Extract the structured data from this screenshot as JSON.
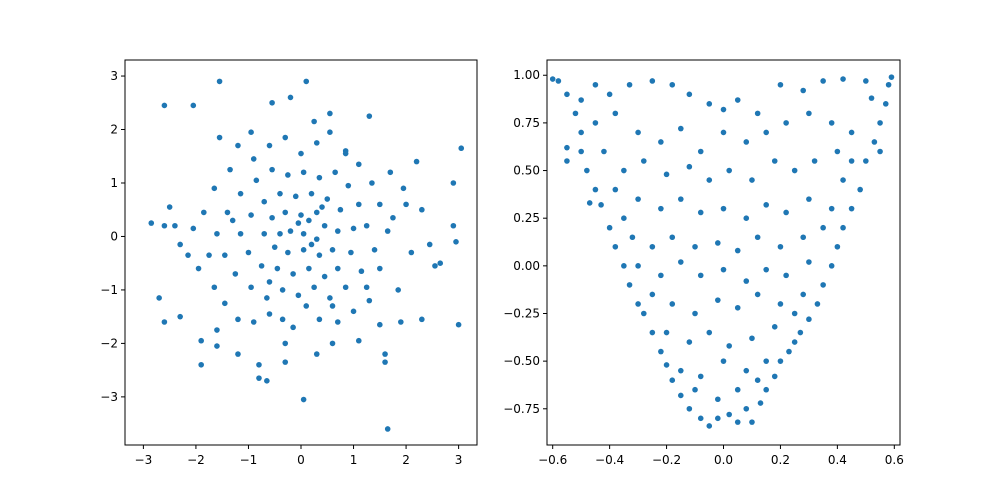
{
  "chart_data": [
    {
      "type": "scatter",
      "marker_color": "#1f77b4",
      "xlim": [
        -3.35,
        3.35
      ],
      "ylim": [
        -3.9,
        3.3
      ],
      "xticks": [
        -3,
        -2,
        -1,
        0,
        1,
        2,
        3
      ],
      "xtick_labels": [
        "−3",
        "−2",
        "−1",
        "0",
        "1",
        "2",
        "3"
      ],
      "yticks": [
        -3,
        -2,
        -1,
        0,
        1,
        2,
        3
      ],
      "ytick_labels": [
        "−3",
        "−2",
        "−1",
        "0",
        "1",
        "2",
        "3"
      ],
      "points": [
        [
          0.1,
          2.9
        ],
        [
          -1.55,
          2.9
        ],
        [
          -2.6,
          2.45
        ],
        [
          -2.05,
          2.45
        ],
        [
          -0.55,
          2.5
        ],
        [
          -0.2,
          2.6
        ],
        [
          1.3,
          2.25
        ],
        [
          0.55,
          2.3
        ],
        [
          -2.85,
          0.25
        ],
        [
          -2.6,
          0.2
        ],
        [
          -2.4,
          0.2
        ],
        [
          -2.7,
          -1.15
        ],
        [
          -2.6,
          -1.6
        ],
        [
          -2.3,
          -1.5
        ],
        [
          -1.9,
          -1.95
        ],
        [
          -1.6,
          -1.75
        ],
        [
          -1.9,
          -2.4
        ],
        [
          -1.6,
          -2.05
        ],
        [
          -1.2,
          -2.2
        ],
        [
          -0.8,
          -2.4
        ],
        [
          -0.8,
          -2.65
        ],
        [
          -0.65,
          -2.7
        ],
        [
          -0.3,
          -2.35
        ],
        [
          0.05,
          -3.05
        ],
        [
          0.3,
          -2.2
        ],
        [
          0.6,
          -2.0
        ],
        [
          1.1,
          -1.95
        ],
        [
          1.6,
          -2.2
        ],
        [
          1.6,
          -2.35
        ],
        [
          1.65,
          -3.6
        ],
        [
          1.5,
          -1.65
        ],
        [
          1.9,
          -1.6
        ],
        [
          2.3,
          -1.55
        ],
        [
          2.55,
          -0.55
        ],
        [
          2.65,
          -0.5
        ],
        [
          2.95,
          -0.1
        ],
        [
          3.0,
          -1.65
        ],
        [
          2.9,
          0.2
        ],
        [
          2.9,
          1.0
        ],
        [
          3.05,
          1.65
        ],
        [
          2.2,
          1.4
        ],
        [
          1.95,
          0.9
        ],
        [
          2.0,
          0.6
        ],
        [
          2.3,
          0.5
        ],
        [
          1.7,
          1.2
        ],
        [
          1.65,
          0.1
        ],
        [
          2.1,
          -0.3
        ],
        [
          1.85,
          -1.0
        ],
        [
          1.5,
          -0.6
        ],
        [
          1.3,
          -1.2
        ],
        [
          1.0,
          -1.4
        ],
        [
          0.7,
          -1.6
        ],
        [
          0.35,
          -1.55
        ],
        [
          0.1,
          -1.3
        ],
        [
          -0.15,
          -1.7
        ],
        [
          -0.35,
          -1.55
        ],
        [
          -0.6,
          -1.45
        ],
        [
          -0.9,
          -1.6
        ],
        [
          -1.2,
          -1.55
        ],
        [
          -1.45,
          -1.25
        ],
        [
          -1.65,
          -0.95
        ],
        [
          -1.95,
          -0.6
        ],
        [
          -2.15,
          -0.35
        ],
        [
          -2.3,
          -0.15
        ],
        [
          -2.05,
          0.15
        ],
        [
          -1.85,
          0.45
        ],
        [
          -1.65,
          0.9
        ],
        [
          -1.35,
          1.25
        ],
        [
          -1.55,
          1.85
        ],
        [
          -1.2,
          1.7
        ],
        [
          -0.9,
          1.45
        ],
        [
          -0.6,
          1.7
        ],
        [
          -0.3,
          1.85
        ],
        [
          0.0,
          1.55
        ],
        [
          0.3,
          1.75
        ],
        [
          0.55,
          1.95
        ],
        [
          0.85,
          1.6
        ],
        [
          1.1,
          1.35
        ],
        [
          1.35,
          1.0
        ],
        [
          1.5,
          0.6
        ],
        [
          1.25,
          0.2
        ],
        [
          1.4,
          -0.25
        ],
        [
          1.15,
          -0.65
        ],
        [
          0.85,
          -0.95
        ],
        [
          0.55,
          -1.15
        ],
        [
          0.25,
          -0.95
        ],
        [
          -0.05,
          -1.1
        ],
        [
          -0.35,
          -1.0
        ],
        [
          -0.65,
          -1.15
        ],
        [
          -0.95,
          -0.95
        ],
        [
          -1.25,
          -0.7
        ],
        [
          -1.45,
          -0.35
        ],
        [
          -1.6,
          0.05
        ],
        [
          -1.4,
          0.45
        ],
        [
          -1.15,
          0.8
        ],
        [
          -0.85,
          1.05
        ],
        [
          -0.55,
          1.25
        ],
        [
          -0.25,
          1.15
        ],
        [
          0.05,
          1.2
        ],
        [
          0.35,
          1.1
        ],
        [
          0.65,
          1.2
        ],
        [
          0.9,
          0.95
        ],
        [
          1.1,
          0.6
        ],
        [
          1.0,
          0.15
        ],
        [
          0.95,
          -0.3
        ],
        [
          0.7,
          -0.6
        ],
        [
          0.45,
          -0.75
        ],
        [
          0.15,
          -0.6
        ],
        [
          -0.15,
          -0.7
        ],
        [
          -0.45,
          -0.6
        ],
        [
          -0.75,
          -0.55
        ],
        [
          -1.0,
          -0.3
        ],
        [
          -1.15,
          0.05
        ],
        [
          -0.95,
          0.4
        ],
        [
          -0.7,
          0.65
        ],
        [
          -0.4,
          0.8
        ],
        [
          -0.1,
          0.75
        ],
        [
          0.2,
          0.8
        ],
        [
          0.5,
          0.7
        ],
        [
          0.75,
          0.5
        ],
        [
          0.7,
          0.1
        ],
        [
          0.6,
          -0.25
        ],
        [
          0.35,
          -0.35
        ],
        [
          0.05,
          -0.25
        ],
        [
          -0.25,
          -0.3
        ],
        [
          -0.5,
          -0.2
        ],
        [
          -0.7,
          0.05
        ],
        [
          -0.55,
          0.35
        ],
        [
          -0.3,
          0.45
        ],
        [
          0.0,
          0.4
        ],
        [
          0.3,
          0.45
        ],
        [
          0.45,
          0.2
        ],
        [
          0.3,
          -0.05
        ],
        [
          0.05,
          0.05
        ],
        [
          -0.2,
          0.1
        ],
        [
          -0.05,
          0.25
        ],
        [
          0.15,
          0.3
        ],
        [
          0.4,
          0.55
        ],
        [
          -0.4,
          0.05
        ],
        [
          0.2,
          -0.15
        ],
        [
          -0.6,
          -0.85
        ],
        [
          -1.3,
          0.3
        ],
        [
          1.25,
          -0.95
        ],
        [
          0.85,
          1.55
        ],
        [
          -0.95,
          1.95
        ],
        [
          0.25,
          2.15
        ],
        [
          -1.75,
          -0.35
        ],
        [
          1.75,
          0.35
        ],
        [
          -0.3,
          -2.0
        ],
        [
          0.6,
          -1.3
        ],
        [
          -2.5,
          0.55
        ],
        [
          2.45,
          -0.15
        ]
      ]
    },
    {
      "type": "scatter",
      "marker_color": "#1f77b4",
      "xlim": [
        -0.62,
        0.62
      ],
      "ylim": [
        -0.94,
        1.08
      ],
      "xticks": [
        -0.6,
        -0.4,
        -0.2,
        0.0,
        0.2,
        0.4,
        0.6
      ],
      "xtick_labels": [
        "−0.6",
        "−0.4",
        "−0.2",
        "0.0",
        "0.2",
        "0.4",
        "0.6"
      ],
      "yticks": [
        -0.75,
        -0.5,
        -0.25,
        0.0,
        0.25,
        0.5,
        0.75,
        1.0
      ],
      "ytick_labels": [
        "−0.75",
        "−0.50",
        "−0.25",
        "0.00",
        "0.25",
        "0.50",
        "0.75",
        "1.00"
      ],
      "points": [
        [
          -0.6,
          0.98
        ],
        [
          -0.58,
          0.97
        ],
        [
          -0.55,
          0.9
        ],
        [
          -0.52,
          0.8
        ],
        [
          -0.5,
          0.7
        ],
        [
          -0.55,
          0.62
        ],
        [
          -0.5,
          0.6
        ],
        [
          -0.48,
          0.5
        ],
        [
          -0.45,
          0.4
        ],
        [
          -0.47,
          0.33
        ],
        [
          -0.43,
          0.32
        ],
        [
          -0.4,
          0.2
        ],
        [
          -0.38,
          0.1
        ],
        [
          -0.35,
          0.0
        ],
        [
          -0.33,
          -0.1
        ],
        [
          -0.3,
          -0.2
        ],
        [
          -0.28,
          -0.25
        ],
        [
          -0.25,
          -0.35
        ],
        [
          -0.22,
          -0.45
        ],
        [
          -0.2,
          -0.52
        ],
        [
          -0.18,
          -0.6
        ],
        [
          -0.15,
          -0.68
        ],
        [
          -0.12,
          -0.75
        ],
        [
          -0.08,
          -0.8
        ],
        [
          -0.05,
          -0.84
        ],
        [
          -0.02,
          -0.8
        ],
        [
          0.02,
          -0.78
        ],
        [
          0.05,
          -0.82
        ],
        [
          0.08,
          -0.75
        ],
        [
          0.1,
          -0.82
        ],
        [
          0.13,
          -0.72
        ],
        [
          0.15,
          -0.65
        ],
        [
          0.18,
          -0.58
        ],
        [
          0.2,
          -0.5
        ],
        [
          0.23,
          -0.45
        ],
        [
          0.27,
          -0.35
        ],
        [
          0.3,
          -0.28
        ],
        [
          0.33,
          -0.2
        ],
        [
          0.35,
          -0.1
        ],
        [
          0.38,
          0.0
        ],
        [
          0.4,
          0.1
        ],
        [
          0.42,
          0.2
        ],
        [
          0.45,
          0.3
        ],
        [
          0.48,
          0.4
        ],
        [
          0.5,
          0.55
        ],
        [
          0.53,
          0.65
        ],
        [
          0.55,
          0.75
        ],
        [
          0.57,
          0.85
        ],
        [
          0.58,
          0.95
        ],
        [
          0.59,
          0.99
        ],
        [
          0.5,
          0.97
        ],
        [
          0.42,
          0.98
        ],
        [
          0.35,
          0.97
        ],
        [
          0.28,
          0.92
        ],
        [
          0.2,
          0.95
        ],
        [
          0.12,
          0.8
        ],
        [
          0.05,
          0.87
        ],
        [
          0.0,
          0.82
        ],
        [
          -0.05,
          0.85
        ],
        [
          -0.12,
          0.9
        ],
        [
          -0.18,
          0.95
        ],
        [
          -0.25,
          0.97
        ],
        [
          -0.33,
          0.95
        ],
        [
          -0.4,
          0.9
        ],
        [
          -0.45,
          0.95
        ],
        [
          -0.38,
          0.8
        ],
        [
          -0.3,
          0.7
        ],
        [
          -0.22,
          0.65
        ],
        [
          -0.15,
          0.72
        ],
        [
          -0.08,
          0.6
        ],
        [
          0.0,
          0.7
        ],
        [
          0.08,
          0.65
        ],
        [
          0.15,
          0.7
        ],
        [
          0.22,
          0.75
        ],
        [
          0.3,
          0.8
        ],
        [
          0.38,
          0.75
        ],
        [
          0.45,
          0.7
        ],
        [
          0.4,
          0.6
        ],
        [
          0.32,
          0.55
        ],
        [
          0.25,
          0.5
        ],
        [
          0.18,
          0.55
        ],
        [
          0.1,
          0.45
        ],
        [
          0.02,
          0.5
        ],
        [
          -0.05,
          0.45
        ],
        [
          -0.12,
          0.52
        ],
        [
          -0.2,
          0.48
        ],
        [
          -0.28,
          0.55
        ],
        [
          -0.35,
          0.5
        ],
        [
          -0.42,
          0.6
        ],
        [
          -0.38,
          0.4
        ],
        [
          -0.3,
          0.35
        ],
        [
          -0.22,
          0.3
        ],
        [
          -0.15,
          0.35
        ],
        [
          -0.08,
          0.28
        ],
        [
          0.0,
          0.3
        ],
        [
          0.08,
          0.25
        ],
        [
          0.15,
          0.32
        ],
        [
          0.22,
          0.28
        ],
        [
          0.3,
          0.35
        ],
        [
          0.38,
          0.3
        ],
        [
          0.42,
          0.45
        ],
        [
          0.35,
          0.2
        ],
        [
          0.28,
          0.15
        ],
        [
          0.2,
          0.1
        ],
        [
          0.12,
          0.15
        ],
        [
          0.05,
          0.08
        ],
        [
          -0.02,
          0.12
        ],
        [
          -0.1,
          0.1
        ],
        [
          -0.18,
          0.15
        ],
        [
          -0.25,
          0.1
        ],
        [
          -0.32,
          0.15
        ],
        [
          -0.3,
          0.0
        ],
        [
          -0.22,
          -0.05
        ],
        [
          -0.15,
          0.02
        ],
        [
          -0.08,
          -0.05
        ],
        [
          0.0,
          -0.02
        ],
        [
          0.08,
          -0.08
        ],
        [
          0.15,
          -0.02
        ],
        [
          0.22,
          -0.05
        ],
        [
          0.3,
          0.02
        ],
        [
          0.28,
          -0.15
        ],
        [
          0.2,
          -0.2
        ],
        [
          0.12,
          -0.15
        ],
        [
          0.05,
          -0.22
        ],
        [
          -0.02,
          -0.18
        ],
        [
          -0.1,
          -0.25
        ],
        [
          -0.18,
          -0.2
        ],
        [
          -0.25,
          -0.15
        ],
        [
          -0.2,
          -0.35
        ],
        [
          -0.12,
          -0.4
        ],
        [
          -0.05,
          -0.35
        ],
        [
          0.02,
          -0.42
        ],
        [
          0.1,
          -0.38
        ],
        [
          0.18,
          -0.32
        ],
        [
          0.25,
          -0.4
        ],
        [
          0.15,
          -0.5
        ],
        [
          0.08,
          -0.55
        ],
        [
          0.0,
          -0.5
        ],
        [
          -0.08,
          -0.58
        ],
        [
          -0.15,
          -0.55
        ],
        [
          -0.1,
          -0.65
        ],
        [
          -0.02,
          -0.7
        ],
        [
          0.05,
          -0.65
        ],
        [
          0.12,
          -0.6
        ],
        [
          -0.55,
          0.55
        ],
        [
          0.55,
          0.6
        ],
        [
          0.52,
          0.88
        ],
        [
          -0.5,
          0.87
        ],
        [
          0.25,
          -0.25
        ],
        [
          -0.35,
          0.25
        ],
        [
          0.45,
          0.55
        ],
        [
          -0.45,
          0.75
        ]
      ]
    }
  ]
}
